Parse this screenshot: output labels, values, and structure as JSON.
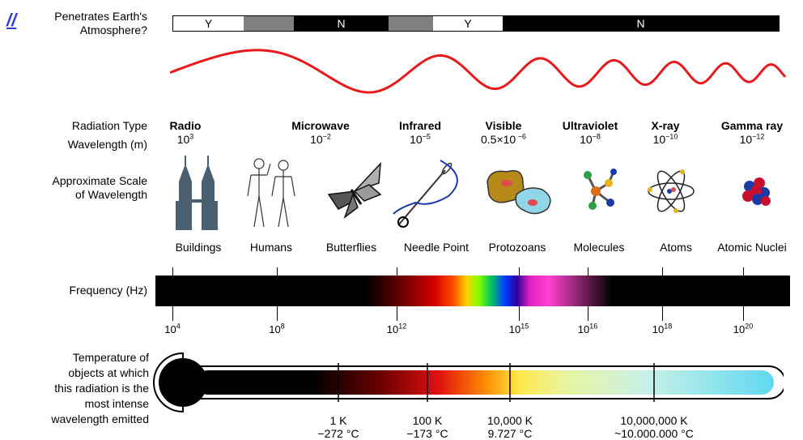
{
  "corner_link": {
    "text": "//"
  },
  "atmosphere": {
    "label_line1": "Penetrates Earth's",
    "label_line2": "Atmosphere?",
    "segments": [
      {
        "text": "Y",
        "color": "#ffffff",
        "text_color": "#000000"
      },
      {
        "text": "",
        "color": "#808080",
        "text_color": "#000000"
      },
      {
        "text": "N",
        "color": "#000000",
        "text_color": "#ffffff"
      },
      {
        "text": "",
        "color": "#808080",
        "text_color": "#000000"
      },
      {
        "text": "Y",
        "color": "#ffffff",
        "text_color": "#000000"
      },
      {
        "text": "N",
        "color": "#000000",
        "text_color": "#ffffff"
      }
    ]
  },
  "row_labels": {
    "radiation_type": "Radiation Type",
    "wavelength": "Wavelength (m)",
    "scale_line1": "Approximate Scale",
    "scale_line2": "of Wavelength",
    "frequency": "Frequency (Hz)",
    "temp_lines": [
      "Temperature of",
      "objects at which",
      "this radiation is the",
      "most intense",
      "wavelength emitted"
    ]
  },
  "radiation_types": [
    {
      "name": "Radio",
      "wl_base": "10",
      "wl_exp": "3"
    },
    {
      "name": "Microwave",
      "wl_base": "10",
      "wl_exp": "−2"
    },
    {
      "name": "Infrared",
      "wl_base": "10",
      "wl_exp": "−5"
    },
    {
      "name": "Visible",
      "wl_base": "0.5×10",
      "wl_exp": " −6"
    },
    {
      "name": "Ultraviolet",
      "wl_base": "10",
      "wl_exp": "−8"
    },
    {
      "name": "X-ray",
      "wl_base": "10",
      "wl_exp": "−10"
    },
    {
      "name": "Gamma ray",
      "wl_base": "10",
      "wl_exp": "−12"
    }
  ],
  "scale_objects": [
    "Buildings",
    "Humans",
    "Butterflies",
    "Needle Point",
    "Protozoans",
    "Molecules",
    "Atoms",
    "Atomic Nuclei"
  ],
  "frequency_ticks": [
    {
      "base": "10",
      "exp": "4"
    },
    {
      "base": "10",
      "exp": "8"
    },
    {
      "base": "10",
      "exp": "12"
    },
    {
      "base": "10",
      "exp": "15"
    },
    {
      "base": "10",
      "exp": "16"
    },
    {
      "base": "10",
      "exp": "18"
    },
    {
      "base": "10",
      "exp": "20"
    }
  ],
  "temperature_ticks": [
    {
      "kelvin": "1 K",
      "celsius": "−272 °C"
    },
    {
      "kelvin": "100 K",
      "celsius": "−173 °C"
    },
    {
      "kelvin": "10,000 K",
      "celsius": "9.727 °C"
    },
    {
      "kelvin": "10,000,000 K",
      "celsius": "~10.000.000 °C"
    }
  ],
  "colors": {
    "wave": "#e8191c",
    "bar": "#000000",
    "accent_link": "#2b3fd6"
  }
}
